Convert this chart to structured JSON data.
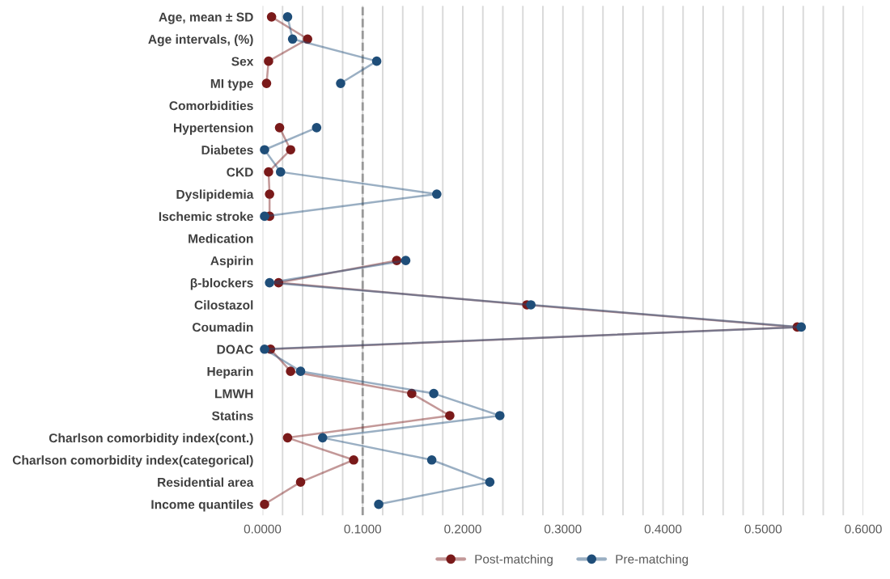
{
  "chart_data": {
    "type": "line",
    "orientation": "horizontal",
    "categories": [
      "Age, mean ± SD",
      "Age intervals, (%)",
      "Sex",
      "MI type",
      "Comorbidities",
      "Hypertension",
      "Diabetes",
      "CKD",
      "Dyslipidemia",
      "Ischemic stroke",
      "Medication",
      "Aspirin",
      "β-blockers",
      "Cilostazol",
      "Coumadin",
      "DOAC",
      "Heparin",
      "LMWH",
      "Statins",
      "Charlson comorbidity index(cont.)",
      "Charlson comorbidity index(categorical)",
      "Residential area",
      "Income quantiles"
    ],
    "series": [
      {
        "name": "Post-matching",
        "color": "#7a1a1a",
        "values": [
          0.009,
          0.045,
          0.006,
          0.004,
          null,
          0.017,
          0.028,
          0.006,
          0.007,
          0.007,
          null,
          0.134,
          0.016,
          0.264,
          0.534,
          0.008,
          0.028,
          0.149,
          0.187,
          0.025,
          0.091,
          0.038,
          0.002
        ]
      },
      {
        "name": "Pre-matching",
        "color": "#1f4e79",
        "values": [
          0.025,
          0.03,
          0.114,
          0.078,
          null,
          0.054,
          0.002,
          0.018,
          0.174,
          0.002,
          null,
          0.143,
          0.007,
          0.268,
          0.538,
          0.002,
          0.038,
          0.171,
          0.237,
          0.06,
          0.169,
          0.227,
          0.116
        ]
      }
    ],
    "xlim": [
      0,
      0.6
    ],
    "xticks": [
      {
        "value": 0,
        "label": "0.0000"
      },
      {
        "value": 0.02,
        "label": null
      },
      {
        "value": 0.04,
        "label": null
      },
      {
        "value": 0.06,
        "label": null
      },
      {
        "value": 0.08,
        "label": null
      },
      {
        "value": 0.1,
        "label": "0.1000"
      },
      {
        "value": 0.12,
        "label": null
      },
      {
        "value": 0.14,
        "label": null
      },
      {
        "value": 0.16,
        "label": null
      },
      {
        "value": 0.18,
        "label": null
      },
      {
        "value": 0.2,
        "label": "0.2000"
      },
      {
        "value": 0.22,
        "label": null
      },
      {
        "value": 0.24,
        "label": null
      },
      {
        "value": 0.26,
        "label": null
      },
      {
        "value": 0.28,
        "label": null
      },
      {
        "value": 0.3,
        "label": "0.3000"
      },
      {
        "value": 0.32,
        "label": null
      },
      {
        "value": 0.34,
        "label": null
      },
      {
        "value": 0.36,
        "label": null
      },
      {
        "value": 0.38,
        "label": null
      },
      {
        "value": 0.4,
        "label": "0.4000"
      },
      {
        "value": 0.42,
        "label": null
      },
      {
        "value": 0.44,
        "label": null
      },
      {
        "value": 0.46,
        "label": null
      },
      {
        "value": 0.48,
        "label": null
      },
      {
        "value": 0.5,
        "label": "0.5000"
      },
      {
        "value": 0.52,
        "label": null
      },
      {
        "value": 0.54,
        "label": null
      },
      {
        "value": 0.56,
        "label": null
      },
      {
        "value": 0.58,
        "label": null
      },
      {
        "value": 0.6,
        "label": "0.6000"
      }
    ],
    "ref_lines": [
      {
        "axis": "x",
        "value": 0.1,
        "color": "#999999",
        "line_style": "dashed"
      }
    ],
    "grid": "x",
    "legend": "bottom",
    "marker": "circle",
    "line_style": "solid"
  }
}
